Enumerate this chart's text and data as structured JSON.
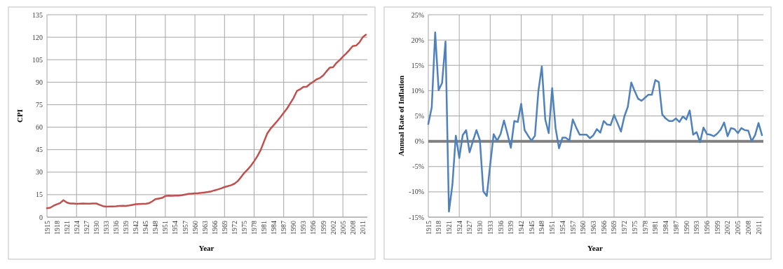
{
  "chart_data": [
    {
      "type": "line",
      "xlabel": "Year",
      "ylabel": "CPI",
      "categories": [
        "1915",
        null,
        null,
        "1918",
        null,
        null,
        "1921",
        null,
        null,
        "1924",
        null,
        null,
        "1927",
        null,
        null,
        "1930",
        null,
        null,
        "1933",
        null,
        null,
        "1936",
        null,
        null,
        "1939",
        null,
        null,
        "1942",
        null,
        null,
        "1945",
        null,
        null,
        "1948",
        null,
        null,
        "1951",
        null,
        null,
        "1954",
        null,
        null,
        "1957",
        null,
        null,
        "1960",
        null,
        null,
        "1963",
        null,
        null,
        "1966",
        null,
        null,
        "1969",
        null,
        null,
        "1972",
        null,
        null,
        "1975",
        null,
        null,
        "1978",
        null,
        null,
        "1981",
        null,
        null,
        "1984",
        null,
        null,
        "1987",
        null,
        null,
        "1990",
        null,
        null,
        "1993",
        null,
        null,
        "1996",
        null,
        null,
        "1999",
        null,
        null,
        "2002",
        null,
        null,
        "2005",
        null,
        null,
        "2008",
        null,
        null,
        "2011",
        null
      ],
      "series": [
        {
          "color": "#c0504d",
          "values": [
            6.0,
            6.3,
            7.6,
            8.6,
            9.4,
            11.3,
            9.8,
            9.1,
            9.1,
            8.9,
            9.0,
            9.1,
            9.0,
            9.0,
            9.1,
            9.1,
            8.2,
            7.4,
            7.0,
            7.1,
            7.1,
            7.2,
            7.5,
            7.6,
            7.5,
            7.8,
            8.2,
            8.6,
            8.8,
            8.9,
            8.9,
            9.3,
            10.5,
            12.0,
            12.4,
            12.8,
            14.1,
            14.4,
            14.3,
            14.4,
            14.4,
            14.6,
            15.1,
            15.5,
            15.7,
            15.9,
            16.0,
            16.2,
            16.5,
            16.8,
            17.2,
            17.9,
            18.5,
            19.2,
            20.1,
            20.7,
            21.3,
            22.3,
            24.0,
            26.6,
            29.5,
            31.7,
            34.2,
            37.3,
            40.7,
            44.8,
            50.4,
            55.8,
            59.0,
            61.5,
            64.0,
            66.7,
            69.6,
            72.4,
            76.0,
            79.5,
            84.1,
            85.3,
            86.9,
            87.0,
            88.9,
            90.3,
            91.9,
            92.8,
            94.5,
            97.2,
            99.7,
            100.0,
            102.8,
            104.7,
            107.0,
            109.1,
            111.5,
            114.1,
            114.4,
            116.5,
            119.9,
            121.7
          ]
        }
      ],
      "ylim": [
        0,
        135
      ],
      "yticks": [
        0,
        15,
        30,
        45,
        60,
        75,
        90,
        105,
        120,
        135
      ],
      "grid": true
    },
    {
      "type": "line",
      "xlabel": "Year",
      "ylabel": "Annual Rate of Inflation",
      "categories": [
        "1915",
        null,
        null,
        "1918",
        null,
        null,
        "1921",
        null,
        null,
        "1924",
        null,
        null,
        "1927",
        null,
        null,
        "1930",
        null,
        null,
        "1933",
        null,
        null,
        "1936",
        null,
        null,
        "1939",
        null,
        null,
        "1942",
        null,
        null,
        "1945",
        null,
        null,
        "1948",
        null,
        null,
        "1951",
        null,
        null,
        "1954",
        null,
        null,
        "1957",
        null,
        null,
        "1960",
        null,
        null,
        "1963",
        null,
        null,
        "1966",
        null,
        null,
        "1969",
        null,
        null,
        "1972",
        null,
        null,
        "1975",
        null,
        null,
        "1978",
        null,
        null,
        "1981",
        null,
        null,
        "1984",
        null,
        null,
        "1987",
        null,
        null,
        "1990",
        null,
        null,
        "1993",
        null,
        null,
        "1996",
        null,
        null,
        "1999",
        null,
        null,
        "2002",
        null,
        null,
        "2005",
        null,
        null,
        "2008",
        null,
        null,
        "2011",
        null
      ],
      "series": [
        {
          "color": "#4f81bd",
          "values": [
            3.4,
            6.7,
            21.5,
            10.1,
            11.5,
            19.7,
            -13.9,
            -8.6,
            1.1,
            -3.3,
            1.2,
            2.2,
            -2.2,
            0.1,
            2.2,
            0.2,
            -9.9,
            -10.8,
            -4.6,
            1.4,
            0.1,
            1.4,
            4.1,
            1.5,
            -1.3,
            4.0,
            3.8,
            7.4,
            2.2,
            1.1,
            0.1,
            1.1,
            9.9,
            14.8,
            4.3,
            1.6,
            10.5,
            2.6,
            -1.4,
            0.7,
            0.7,
            0.1,
            4.3,
            2.7,
            1.3,
            1.3,
            1.3,
            0.6,
            1.2,
            2.4,
            1.7,
            4.0,
            3.3,
            3.2,
            5.2,
            3.6,
            1.9,
            4.9,
            6.8,
            11.6,
            9.9,
            8.4,
            8.0,
            8.6,
            9.2,
            9.2,
            12.1,
            11.7,
            5.3,
            4.5,
            4.0,
            4.0,
            4.5,
            3.8,
            4.9,
            4.3,
            6.1,
            1.3,
            1.8,
            -0.2,
            2.7,
            1.4,
            1.3,
            1.0,
            1.5,
            2.3,
            3.7,
            1.0,
            2.6,
            2.4,
            1.6,
            2.6,
            2.2,
            2.1,
            0.0,
            1.2,
            3.6,
            1.2
          ]
        }
      ],
      "ylim": [
        -15,
        25
      ],
      "yticks": [
        {
          "value": -15,
          "label": "-15%"
        },
        {
          "value": -10,
          "label": "-10%"
        },
        {
          "value": -5,
          "label": "-5%"
        },
        {
          "value": 0,
          "label": "0%"
        },
        {
          "value": 5,
          "label": "5%"
        },
        {
          "value": 10,
          "label": "10%"
        },
        {
          "value": 15,
          "label": "15%"
        },
        {
          "value": 20,
          "label": "20%"
        },
        {
          "value": 25,
          "label": "25%"
        }
      ],
      "grid": true,
      "ref_lines": [
        {
          "axis": "y",
          "value": 0,
          "color": "#808080"
        }
      ]
    }
  ]
}
